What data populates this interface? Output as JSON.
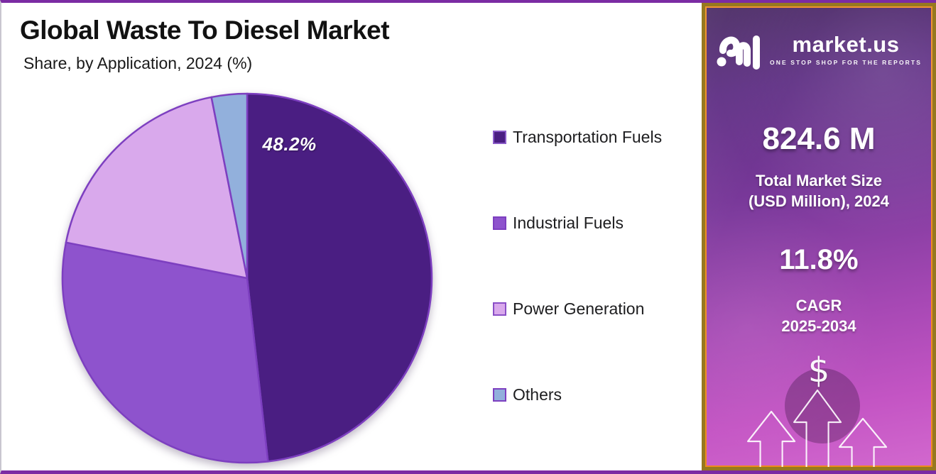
{
  "header": {
    "title": "Global Waste To Diesel Market",
    "subtitle": "Share, by Application, 2024 (%)"
  },
  "chart_data": {
    "type": "pie",
    "title": "Global Waste To Diesel Market Share, by Application, 2024 (%)",
    "unit": "%",
    "categories": [
      "Transportation Fuels",
      "Industrial Fuels",
      "Power Generation",
      "Others"
    ],
    "values": [
      48.2,
      29.9,
      18.8,
      3.1
    ],
    "values_note": "Only the 48.2% slice is labeled in the figure; other values estimated from slice angles",
    "colors": [
      "#4a1e82",
      "#8e53cd",
      "#d9a9ec",
      "#92b0dc"
    ],
    "legend_border_colors": [
      "#8a5bc8",
      "#7d3fc0",
      "#8a4fc7",
      "#7d3fc0"
    ],
    "stroke_color": "#7d3fc0",
    "start_angle_deg": 0,
    "direction": "clockwise",
    "legend_position": "right",
    "annotations": [
      {
        "slice": "Transportation Fuels",
        "text": "48.2%"
      }
    ]
  },
  "sidebar": {
    "logo": {
      "brand": "market.us",
      "tagline": "ONE STOP SHOP FOR THE REPORTS"
    },
    "market_size": {
      "value": "824.6 M",
      "line1": "Total Market Size",
      "line2": "(USD Million), 2024"
    },
    "cagr": {
      "value": "11.8%",
      "line1": "CAGR",
      "line2": "2025-2034"
    },
    "dollar_symbol": "$",
    "colors": {
      "border_outer": "#97781f",
      "border_inner": "#ef8a1e",
      "gradient_top": "#44245f",
      "gradient_bottom": "#d268ce"
    }
  },
  "page_frame_color": "#7b2ba3"
}
